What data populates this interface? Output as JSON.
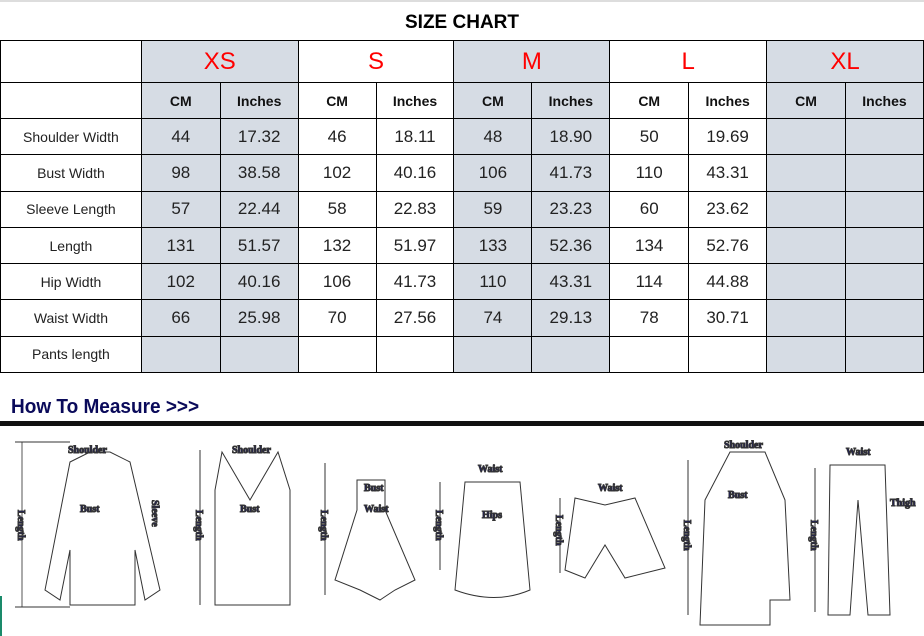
{
  "title": "SIZE CHART",
  "sizes": [
    "XS",
    "S",
    "M",
    "L",
    "XL"
  ],
  "units": {
    "cm": "CM",
    "inches": "Inches"
  },
  "rows": [
    {
      "label": "Shoulder Width",
      "values": [
        "44",
        "17.32",
        "46",
        "18.11",
        "48",
        "18.90",
        "50",
        "19.69",
        "",
        ""
      ]
    },
    {
      "label": "Bust Width",
      "values": [
        "98",
        "38.58",
        "102",
        "40.16",
        "106",
        "41.73",
        "110",
        "43.31",
        "",
        ""
      ]
    },
    {
      "label": "Sleeve Length",
      "values": [
        "57",
        "22.44",
        "58",
        "22.83",
        "59",
        "23.23",
        "60",
        "23.62",
        "",
        ""
      ]
    },
    {
      "label": "Length",
      "values": [
        "131",
        "51.57",
        "132",
        "51.97",
        "133",
        "52.36",
        "134",
        "52.76",
        "",
        ""
      ]
    },
    {
      "label": "Hip Width",
      "values": [
        "102",
        "40.16",
        "106",
        "41.73",
        "110",
        "43.31",
        "114",
        "44.88",
        "",
        ""
      ]
    },
    {
      "label": "Waist Width",
      "values": [
        "66",
        "25.98",
        "70",
        "27.56",
        "74",
        "29.13",
        "78",
        "30.71",
        "",
        ""
      ]
    },
    {
      "label": "Pants length",
      "values": [
        "",
        "",
        "",
        "",
        "",
        "",
        "",
        "",
        "",
        ""
      ]
    }
  ],
  "colors": {
    "size_label": "#ff0000",
    "shaded": "#d6dce4",
    "heading": "#0a0a5a"
  },
  "how_to_measure": {
    "heading": "How To Measure >>>",
    "labels": {
      "shoulder": "Shoulder",
      "bust": "Bust",
      "sleeve": "Sleeve",
      "length": "Length",
      "waist": "Waist",
      "hips": "Hips",
      "thigh": "Thigh"
    }
  }
}
